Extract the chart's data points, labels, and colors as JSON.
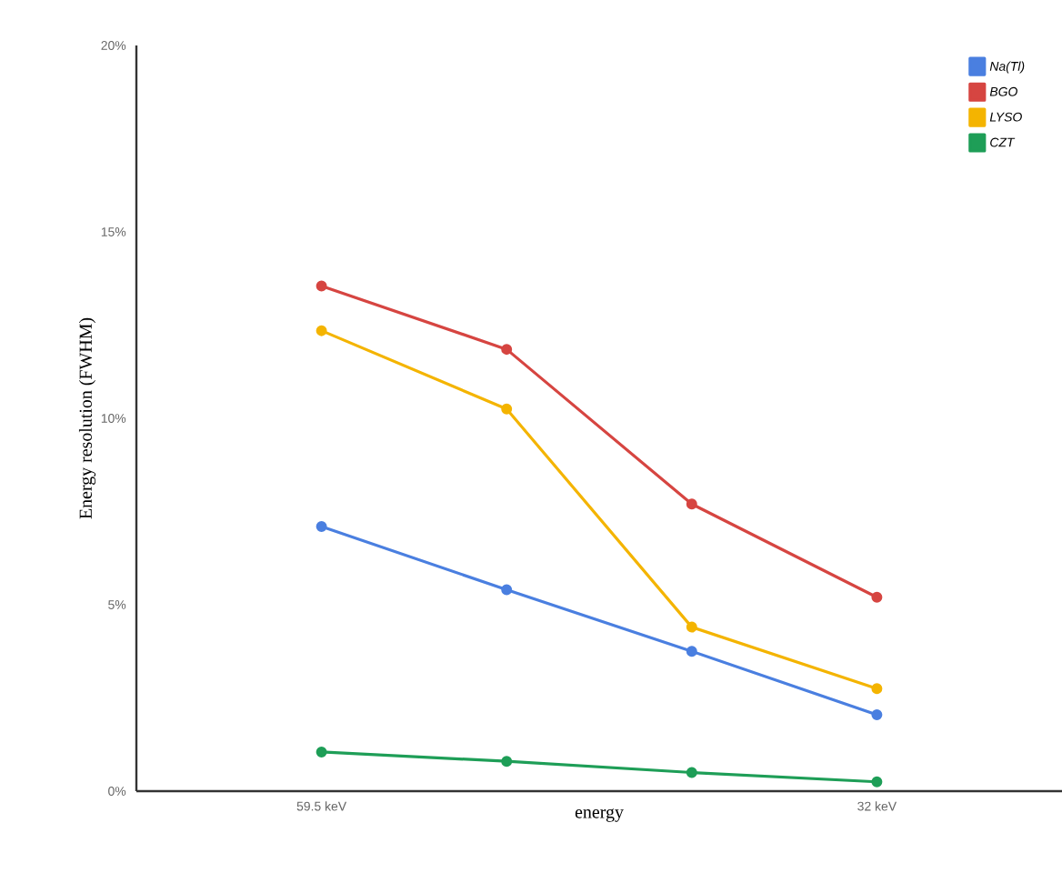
{
  "chart_data": {
    "type": "line",
    "xlabel": "energy",
    "ylabel": "Energy resolution (FWHM)",
    "categories": [
      "59.5 keV",
      null,
      null,
      "32 keV"
    ],
    "series": [
      {
        "name": "Na(Tl)",
        "color": "#4a7fe0",
        "values": [
          7.1,
          5.4,
          3.75,
          2.05
        ]
      },
      {
        "name": "BGO",
        "color": "#d64541",
        "values": [
          13.55,
          11.85,
          7.7,
          5.2
        ]
      },
      {
        "name": "LYSO",
        "color": "#f4b400",
        "values": [
          12.35,
          10.25,
          4.4,
          2.75
        ]
      },
      {
        "name": "CZT",
        "color": "#1e9e57",
        "values": [
          1.05,
          0.8,
          0.5,
          0.25
        ]
      }
    ],
    "ylim": [
      0,
      20
    ],
    "yticks": [
      {
        "value": 0,
        "label": "0%"
      },
      {
        "value": 5,
        "label": "5%"
      },
      {
        "value": 10,
        "label": "10%"
      },
      {
        "value": 15,
        "label": "15%"
      },
      {
        "value": 20,
        "label": "20%"
      }
    ],
    "legend": "top right",
    "marker": "circle",
    "line_style": "solid",
    "grid": false
  }
}
